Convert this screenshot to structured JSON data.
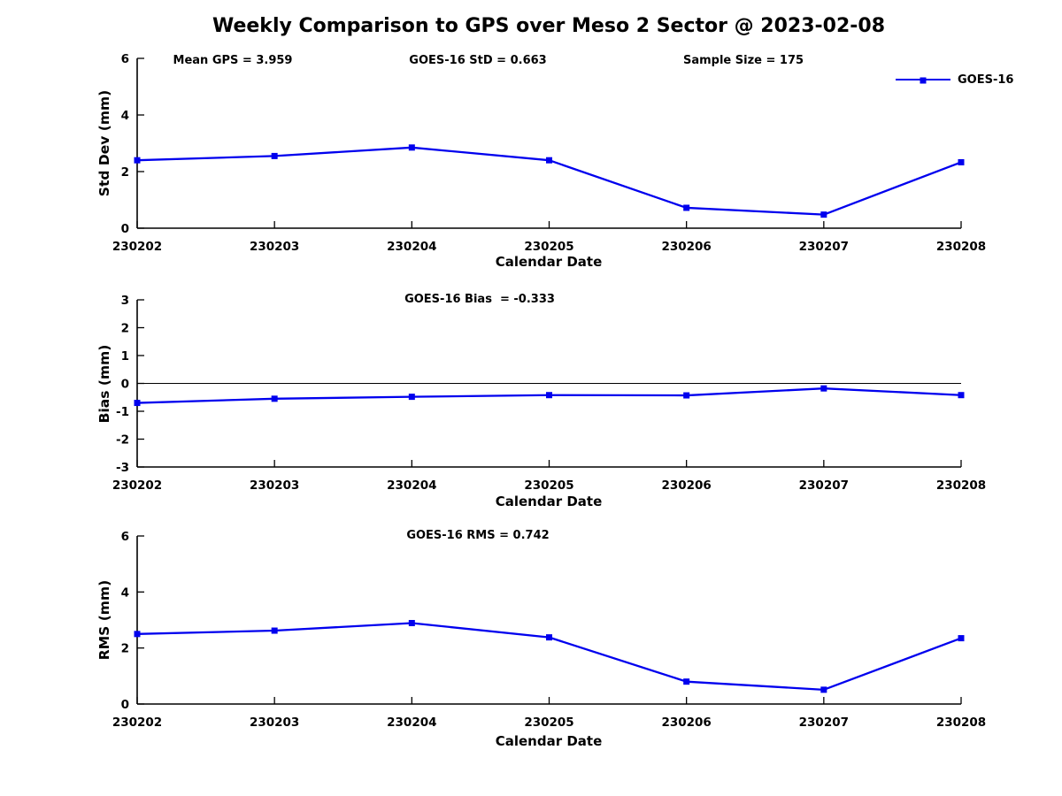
{
  "title": "Weekly Comparison to GPS over Meso 2 Sector @ 2023-02-08",
  "legend": {
    "label": "GOES-16",
    "color": "#0000ee"
  },
  "colors": {
    "series": "#0000ee",
    "axis": "#000000",
    "text": "#000000"
  },
  "chart_data": [
    {
      "type": "line",
      "name": "std-dev-subplot",
      "annotations": [
        "Mean GPS = 3.959",
        "GOES-16 StD = 0.663",
        "Sample Size = 175"
      ],
      "xlabel": "Calendar Date",
      "ylabel": "Std Dev (mm)",
      "categories": [
        "230202",
        "230203",
        "230204",
        "230205",
        "230206",
        "230207",
        "230208"
      ],
      "series": [
        {
          "name": "GOES-16",
          "color": "#0000ee",
          "marker": "square",
          "values": [
            2.4,
            2.55,
            2.85,
            2.4,
            0.72,
            0.48,
            2.33
          ]
        }
      ],
      "ylim": [
        0,
        6
      ],
      "yticks": [
        0,
        2,
        4,
        6
      ],
      "zero_line": false,
      "grid": false,
      "legend_position": "top-right"
    },
    {
      "type": "line",
      "name": "bias-subplot",
      "annotations": [
        "GOES-16 Bias  = -0.333"
      ],
      "xlabel": "Calendar Date",
      "ylabel": "Bias (mm)",
      "categories": [
        "230202",
        "230203",
        "230204",
        "230205",
        "230206",
        "230207",
        "230208"
      ],
      "series": [
        {
          "name": "GOES-16",
          "color": "#0000ee",
          "marker": "square",
          "values": [
            -0.7,
            -0.55,
            -0.48,
            -0.42,
            -0.43,
            -0.18,
            -0.42
          ]
        }
      ],
      "ylim": [
        -3,
        3
      ],
      "yticks": [
        -3,
        -2,
        -1,
        0,
        1,
        2,
        3
      ],
      "zero_line": true,
      "grid": false,
      "legend_position": "none"
    },
    {
      "type": "line",
      "name": "rms-subplot",
      "annotations": [
        "GOES-16 RMS = 0.742"
      ],
      "xlabel": "Calendar Date",
      "ylabel": "RMS (mm)",
      "categories": [
        "230202",
        "230203",
        "230204",
        "230205",
        "230206",
        "230207",
        "230208"
      ],
      "series": [
        {
          "name": "GOES-16",
          "color": "#0000ee",
          "marker": "square",
          "values": [
            2.5,
            2.62,
            2.89,
            2.38,
            0.8,
            0.51,
            2.35
          ]
        }
      ],
      "ylim": [
        0,
        6
      ],
      "yticks": [
        0,
        2,
        4,
        6
      ],
      "zero_line": false,
      "grid": false,
      "legend_position": "none"
    }
  ]
}
